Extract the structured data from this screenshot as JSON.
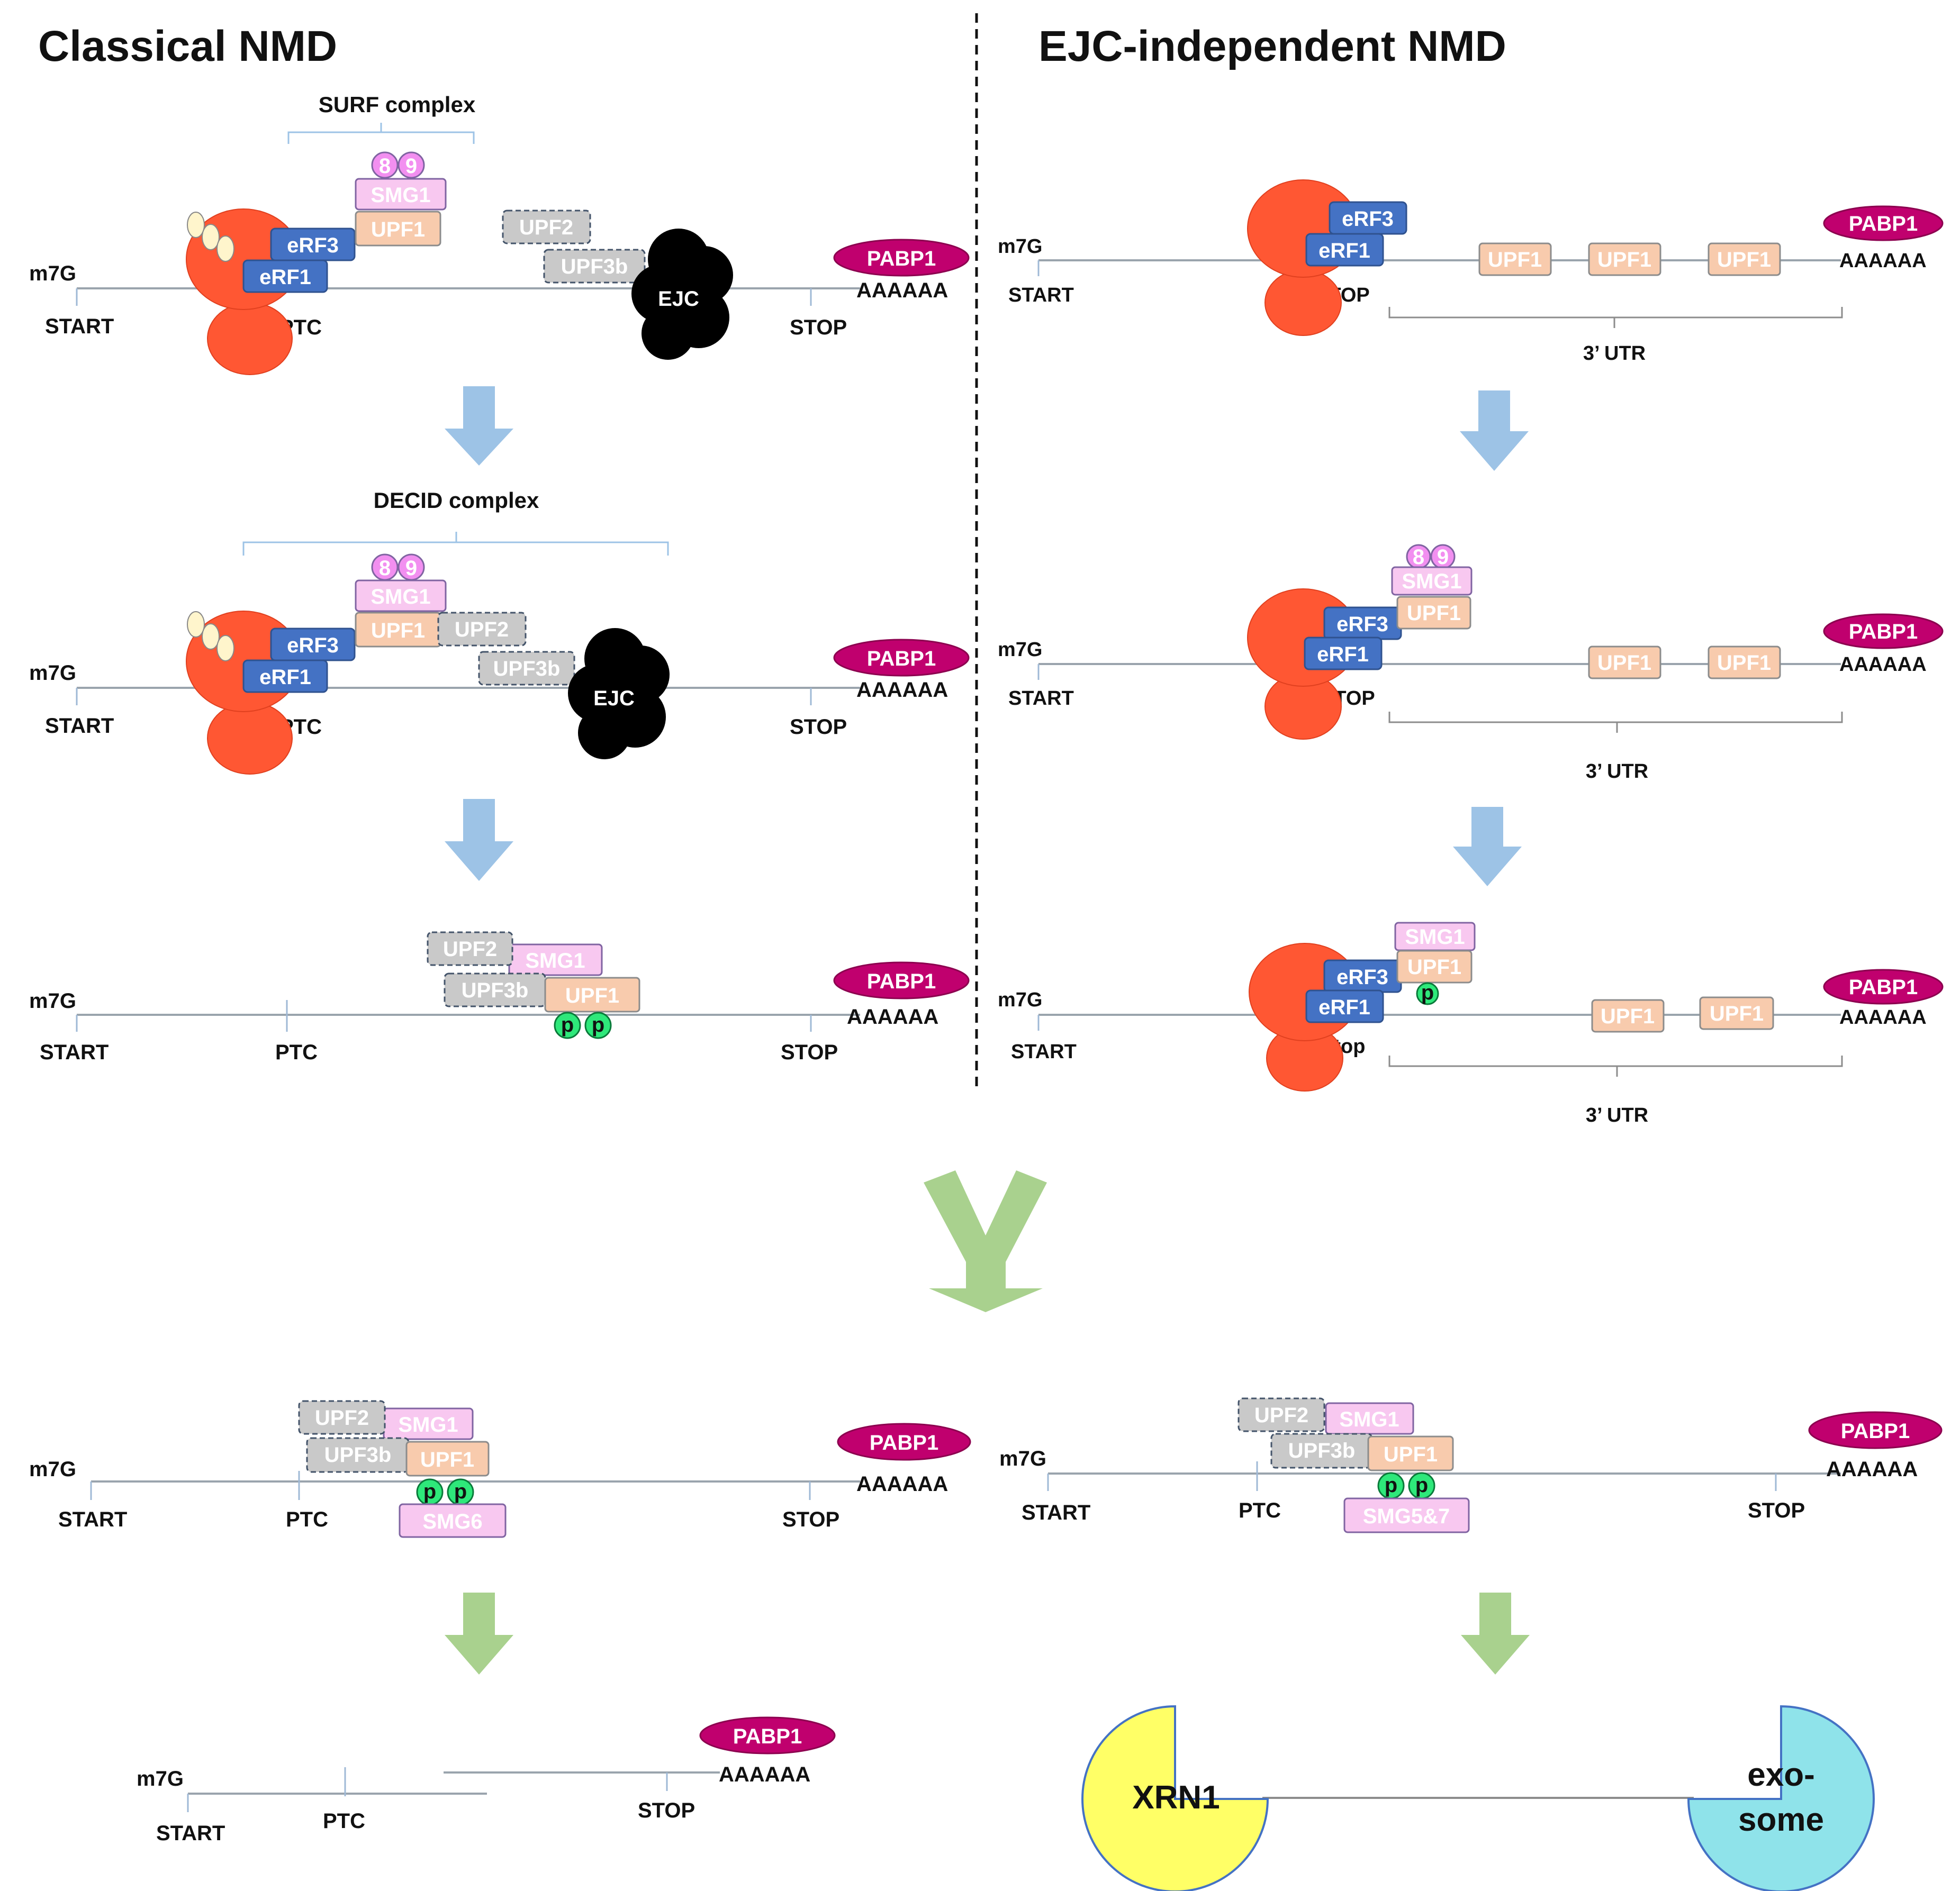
{
  "titles": {
    "classical": "Classical NMD",
    "ejc_independent": "EJC-independent NMD"
  },
  "labels": {
    "m7g": "m7G",
    "start": "START",
    "stop": "STOP",
    "stop_lower": "Stop",
    "ptc": "PTC",
    "polya": "AAAAAA",
    "utr": "3’ UTR",
    "surf": "SURF complex",
    "decid": "DECID complex"
  },
  "proteins": {
    "erf1": "eRF1",
    "erf3": "eRF3",
    "upf1": "UPF1",
    "upf2": "UPF2",
    "upf3b": "UPF3b",
    "smg1": "SMG1",
    "smg6": "SMG6",
    "smg57": "SMG5&7",
    "smg8": "8",
    "smg9": "9",
    "ejc": "EJC",
    "pabp1": "PABP1",
    "phospho": "p",
    "xrn1": "XRN1",
    "exosome_line1": "exo-",
    "exosome_line2": "some"
  },
  "colors": {
    "ribosome": "#ff5733",
    "erf": "#4472c4",
    "upf1": "#f8cbad",
    "upf2_upf3b": "#c9c9c9",
    "smg": "#f8c8f0",
    "pabp1": "#c0006e",
    "phospho": "#2ee87a",
    "step_arrow": "#9dc3e6",
    "merge_arrow": "#a9d18e",
    "xrn1": "#ffff66",
    "exosome": "#8fe3ea"
  }
}
